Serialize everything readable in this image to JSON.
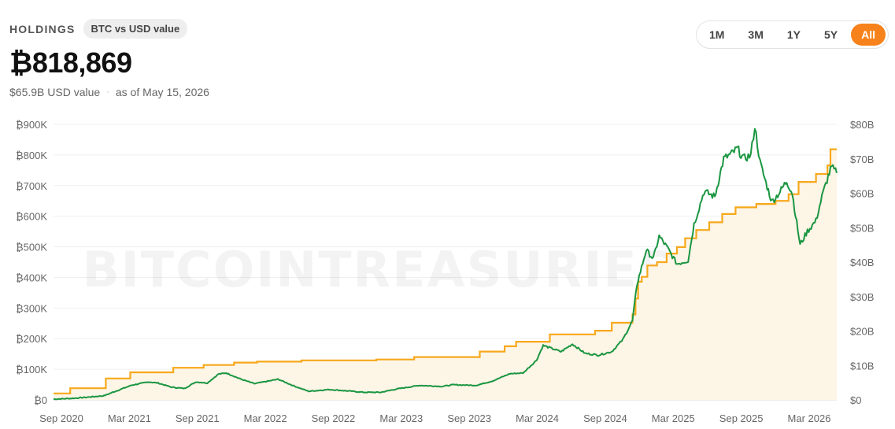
{
  "header": {
    "title": "HOLDINGS",
    "toggle_label": "BTC vs USD value",
    "value": "₿818,869",
    "usd_value": "$65.9B USD value",
    "separator": "·",
    "as_of": "as of May 15, 2026"
  },
  "ranges": [
    {
      "label": "1M",
      "active": false
    },
    {
      "label": "3M",
      "active": false
    },
    {
      "label": "1Y",
      "active": false
    },
    {
      "label": "5Y",
      "active": false
    },
    {
      "label": "All",
      "active": true
    }
  ],
  "watermark": "BITCOINTREASURIES.NET",
  "colors": {
    "btc_line": "#f7a81b",
    "usd_line": "#1a9641",
    "area_fill": "#fdf5e6",
    "accent": "#f7821b"
  },
  "chart_data": {
    "type": "line",
    "x_ticks": [
      "Sep 2020",
      "Mar 2021",
      "Sep 2021",
      "Mar 2022",
      "Sep 2022",
      "Mar 2023",
      "Sep 2023",
      "Mar 2024",
      "Sep 2024",
      "Mar 2025",
      "Sep 2025",
      "Mar 2026"
    ],
    "y_left_ticks": [
      "₿0",
      "₿100K",
      "₿200K",
      "₿300K",
      "₿400K",
      "₿500K",
      "₿600K",
      "₿700K",
      "₿800K",
      "₿900K"
    ],
    "y_right_ticks": [
      "$0",
      "$10B",
      "$20B",
      "$30B",
      "$40B",
      "$50B",
      "$60B",
      "$70B",
      "$80B"
    ],
    "y_left_range": [
      0,
      900000
    ],
    "y_right_range": [
      0,
      80
    ],
    "x_range": [
      "2020-08-01",
      "2026-05-15"
    ],
    "grid": true,
    "series": [
      {
        "unit": "BTC",
        "axis": "left",
        "step": true,
        "points": [
          [
            "2020-08-01",
            21000
          ],
          [
            "2020-09-15",
            38000
          ],
          [
            "2020-12-20",
            70000
          ],
          [
            "2021-02-24",
            90000
          ],
          [
            "2021-06-20",
            105000
          ],
          [
            "2021-09-10",
            114000
          ],
          [
            "2021-12-01",
            122000
          ],
          [
            "2022-02-01",
            125000
          ],
          [
            "2022-06-01",
            129000
          ],
          [
            "2022-12-20",
            132000
          ],
          [
            "2023-04-01",
            140000
          ],
          [
            "2023-09-25",
            158000
          ],
          [
            "2023-12-01",
            175000
          ],
          [
            "2024-01-01",
            190000
          ],
          [
            "2024-04-01",
            214000
          ],
          [
            "2024-08-01",
            226000
          ],
          [
            "2024-09-15",
            252000
          ],
          [
            "2024-11-10",
            279000
          ],
          [
            "2024-11-18",
            331000
          ],
          [
            "2024-11-25",
            386000
          ],
          [
            "2024-12-05",
            402000
          ],
          [
            "2024-12-20",
            439000
          ],
          [
            "2025-01-15",
            450000
          ],
          [
            "2025-02-10",
            478000
          ],
          [
            "2025-03-10",
            499000
          ],
          [
            "2025-04-01",
            528000
          ],
          [
            "2025-05-01",
            555000
          ],
          [
            "2025-06-05",
            580000
          ],
          [
            "2025-07-10",
            607000
          ],
          [
            "2025-08-15",
            629000
          ],
          [
            "2025-10-10",
            640000
          ],
          [
            "2025-12-01",
            650000
          ],
          [
            "2026-01-05",
            672000
          ],
          [
            "2026-02-01",
            712000
          ],
          [
            "2026-03-20",
            738000
          ],
          [
            "2026-04-20",
            766000
          ],
          [
            "2026-04-28",
            818869
          ],
          [
            "2026-05-15",
            818869
          ]
        ]
      },
      {
        "unit": "USD (billions)",
        "axis": "right",
        "step": false,
        "points": [
          [
            "2020-08-01",
            0.2
          ],
          [
            "2020-10-01",
            0.5
          ],
          [
            "2020-12-15",
            1.2
          ],
          [
            "2021-01-15",
            2.5
          ],
          [
            "2021-03-01",
            4.3
          ],
          [
            "2021-04-15",
            5.2
          ],
          [
            "2021-05-10",
            4.9
          ],
          [
            "2021-06-15",
            3.7
          ],
          [
            "2021-07-20",
            3.3
          ],
          [
            "2021-08-20",
            5.2
          ],
          [
            "2021-09-20",
            4.9
          ],
          [
            "2021-10-20",
            7.5
          ],
          [
            "2021-11-10",
            7.8
          ],
          [
            "2021-12-20",
            6.0
          ],
          [
            "2022-01-25",
            4.7
          ],
          [
            "2022-03-30",
            6.0
          ],
          [
            "2022-05-10",
            4.1
          ],
          [
            "2022-06-20",
            2.5
          ],
          [
            "2022-08-15",
            3.0
          ],
          [
            "2022-10-15",
            2.5
          ],
          [
            "2022-11-15",
            2.2
          ],
          [
            "2023-01-01",
            2.2
          ],
          [
            "2023-02-15",
            3.2
          ],
          [
            "2023-04-15",
            4.2
          ],
          [
            "2023-06-15",
            3.9
          ],
          [
            "2023-07-15",
            4.4
          ],
          [
            "2023-09-15",
            4.2
          ],
          [
            "2023-10-30",
            5.5
          ],
          [
            "2023-12-15",
            7.6
          ],
          [
            "2024-01-20",
            7.8
          ],
          [
            "2024-02-25",
            11.5
          ],
          [
            "2024-03-14",
            15.8
          ],
          [
            "2024-05-01",
            14.0
          ],
          [
            "2024-06-01",
            16.2
          ],
          [
            "2024-07-05",
            13.5
          ],
          [
            "2024-08-10",
            13.0
          ],
          [
            "2024-09-15",
            14.0
          ],
          [
            "2024-10-15",
            17.5
          ],
          [
            "2024-11-10",
            23.0
          ],
          [
            "2024-11-22",
            33.5
          ],
          [
            "2024-12-17",
            43.5
          ],
          [
            "2025-01-05",
            41.0
          ],
          [
            "2025-01-21",
            47.5
          ],
          [
            "2025-02-10",
            44.5
          ],
          [
            "2025-03-10",
            39.5
          ],
          [
            "2025-04-09",
            40.5
          ],
          [
            "2025-04-25",
            51.0
          ],
          [
            "2025-05-22",
            60.5
          ],
          [
            "2025-06-20",
            59.0
          ],
          [
            "2025-07-14",
            70.0
          ],
          [
            "2025-08-05",
            71.5
          ],
          [
            "2025-08-20",
            73.0
          ],
          [
            "2025-09-05",
            70.0
          ],
          [
            "2025-09-25",
            71.0
          ],
          [
            "2025-10-06",
            79.5
          ],
          [
            "2025-10-20",
            69.0
          ],
          [
            "2025-11-05",
            63.0
          ],
          [
            "2025-11-21",
            57.5
          ],
          [
            "2025-12-10",
            60.0
          ],
          [
            "2025-12-31",
            63.5
          ],
          [
            "2026-01-15",
            60.0
          ],
          [
            "2026-02-05",
            45.0
          ],
          [
            "2026-02-25",
            49.0
          ],
          [
            "2026-03-20",
            52.0
          ],
          [
            "2026-04-05",
            59.0
          ],
          [
            "2026-04-22",
            65.0
          ],
          [
            "2026-05-01",
            67.5
          ],
          [
            "2026-05-15",
            65.9
          ]
        ]
      }
    ]
  }
}
